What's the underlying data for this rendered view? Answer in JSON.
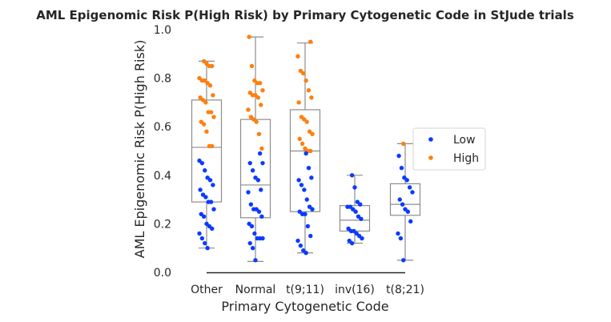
{
  "chart_data": {
    "type": "box+strip",
    "title": "AML Epigenomic Risk P(High Risk) by Primary Cytogenetic Code in StJude trials",
    "xlabel": "Primary Cytogenetic Code",
    "ylabel": "AML Epigenomic Risk P(High Risk)",
    "ylim": [
      0,
      1
    ],
    "yticks": [
      "0.0",
      "0.2",
      "0.4",
      "0.6",
      "0.8",
      "1.0"
    ],
    "categories": [
      "Other",
      "Normal",
      "t(9;11)",
      "inv(16)",
      "t(8;21)"
    ],
    "grid": false,
    "legend_position": "right",
    "colors": {
      "Low": "#0a3bff",
      "High": "#ff7f0e",
      "box_edge": "#8c8c8c"
    },
    "legend": [
      {
        "label": "Low",
        "color": "#0a3bff"
      },
      {
        "label": "High",
        "color": "#ff7f0e"
      }
    ],
    "boxes": [
      {
        "category": "Other",
        "whisker_low": 0.1,
        "q1": 0.29,
        "median": 0.515,
        "q3": 0.71,
        "whisker_high": 0.87
      },
      {
        "category": "Normal",
        "whisker_low": 0.045,
        "q1": 0.225,
        "median": 0.36,
        "q3": 0.63,
        "whisker_high": 0.97
      },
      {
        "category": "t(9;11)",
        "whisker_low": 0.08,
        "q1": 0.25,
        "median": 0.5,
        "q3": 0.67,
        "whisker_high": 0.945
      },
      {
        "category": "inv(16)",
        "whisker_low": 0.12,
        "q1": 0.17,
        "median": 0.215,
        "q3": 0.275,
        "whisker_high": 0.4
      },
      {
        "category": "t(8;21)",
        "whisker_low": 0.05,
        "q1": 0.235,
        "median": 0.28,
        "q3": 0.365,
        "whisker_high": 0.53
      }
    ],
    "series": [
      {
        "name": "High",
        "points": {
          "Other": [
            0.87,
            0.86,
            0.85,
            0.85,
            0.8,
            0.79,
            0.79,
            0.78,
            0.77,
            0.73,
            0.72,
            0.71,
            0.7,
            0.66,
            0.66,
            0.64,
            0.62,
            0.61,
            0.58,
            0.52,
            0.52
          ],
          "Normal": [
            0.97,
            0.85,
            0.79,
            0.78,
            0.78,
            0.75,
            0.74,
            0.73,
            0.73,
            0.72,
            0.69,
            0.67,
            0.64,
            0.63,
            0.62,
            0.57,
            0.51
          ],
          "t(9;11)": [
            0.95,
            0.89,
            0.83,
            0.82,
            0.79,
            0.75,
            0.72,
            0.7,
            0.64,
            0.63,
            0.62,
            0.58,
            0.57,
            0.55,
            0.53,
            0.51,
            0.5,
            0.5
          ],
          "inv(16)": [],
          "t(8;21)": [
            0.53
          ]
        }
      },
      {
        "name": "Low",
        "points": {
          "Other": [
            0.46,
            0.45,
            0.42,
            0.39,
            0.38,
            0.36,
            0.34,
            0.32,
            0.31,
            0.29,
            0.29,
            0.26,
            0.24,
            0.23,
            0.2,
            0.19,
            0.18,
            0.16,
            0.14,
            0.12,
            0.1
          ],
          "Normal": [
            0.49,
            0.45,
            0.45,
            0.42,
            0.39,
            0.38,
            0.34,
            0.33,
            0.28,
            0.26,
            0.26,
            0.25,
            0.23,
            0.2,
            0.19,
            0.16,
            0.14,
            0.14,
            0.14,
            0.12,
            0.1,
            0.05
          ],
          "t(9;11)": [
            0.49,
            0.43,
            0.39,
            0.38,
            0.36,
            0.34,
            0.3,
            0.27,
            0.26,
            0.25,
            0.24,
            0.24,
            0.19,
            0.15,
            0.13,
            0.11,
            0.09,
            0.08
          ],
          "inv(16)": [
            0.4,
            0.35,
            0.29,
            0.28,
            0.27,
            0.27,
            0.26,
            0.25,
            0.23,
            0.22,
            0.18,
            0.17,
            0.17,
            0.16,
            0.15,
            0.14,
            0.13,
            0.12
          ],
          "t(8;21)": [
            0.48,
            0.43,
            0.39,
            0.38,
            0.35,
            0.33,
            0.3,
            0.28,
            0.26,
            0.25,
            0.21,
            0.16,
            0.14,
            0.05
          ]
        }
      }
    ]
  }
}
